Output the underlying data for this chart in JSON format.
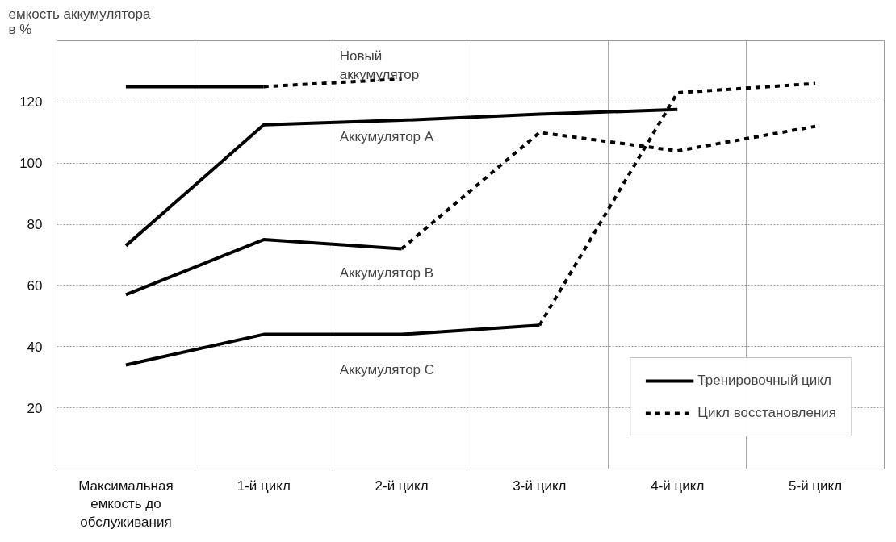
{
  "chart_data": {
    "type": "line",
    "ylabel": "емкость аккумулятора в %",
    "categories": [
      "Максимальная емкость до обслуживания",
      "1-й цикл",
      "2-й цикл",
      "3-й цикл",
      "4-й цикл",
      "5-й цикл"
    ],
    "series": [
      {
        "name": "Тренировочный цикл",
        "color": "#000000",
        "line_style": "solid",
        "values": [
          125,
          125,
          null,
          null,
          null,
          null
        ]
      },
      {
        "name": "Цикл восстановления",
        "color": "#000000",
        "line_style": "dashed",
        "values": [
          null,
          125,
          127.5,
          null,
          null,
          null
        ]
      },
      {
        "color": "#000000",
        "line_style": "solid",
        "values": [
          73,
          112.5,
          114,
          116,
          117.5,
          null
        ]
      },
      {
        "color": "#000000",
        "line_style": "solid",
        "values": [
          57,
          75,
          72,
          null,
          null,
          null
        ]
      },
      {
        "color": "#000000",
        "line_style": "dashed",
        "values": [
          null,
          null,
          72,
          110,
          104,
          112
        ]
      },
      {
        "color": "#000000",
        "line_style": "solid",
        "values": [
          34,
          44,
          44,
          47,
          null,
          null
        ]
      },
      {
        "color": "#000000",
        "line_style": "dashed",
        "values": [
          null,
          null,
          null,
          47,
          123,
          126
        ]
      }
    ],
    "annotations": [
      "Новый аккумулятор",
      "Аккумулятор A",
      "Аккумулятор B",
      "Аккумулятор C"
    ],
    "ylim": [
      0,
      140
    ],
    "yticks": [
      20,
      40,
      60,
      80,
      100,
      120
    ],
    "grid": true,
    "legend": "bottom right",
    "marker": "none"
  }
}
